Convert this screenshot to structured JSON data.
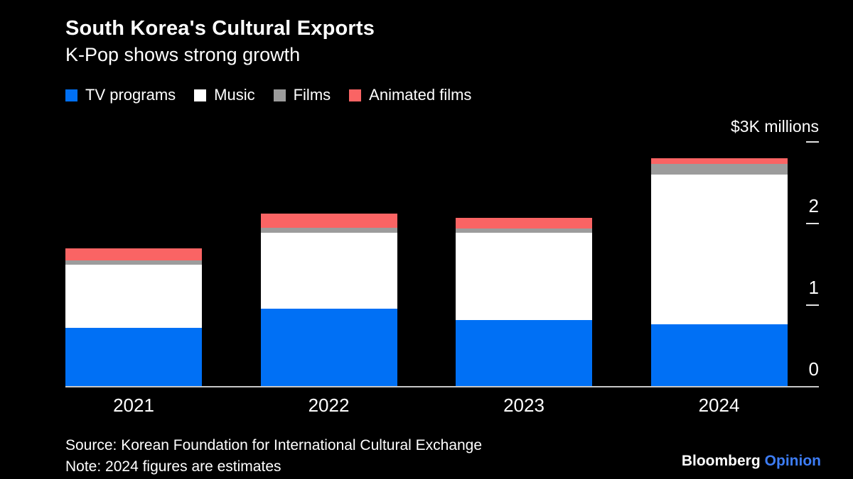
{
  "chart_data": {
    "type": "bar",
    "stacked": true,
    "title": "South Korea's Cultural Exports",
    "subtitle": "K-Pop shows strong growth",
    "categories": [
      "2021",
      "2022",
      "2023",
      "2024"
    ],
    "series": [
      {
        "name": "TV programs",
        "color": "#0070f5",
        "values": [
          0.71,
          0.95,
          0.81,
          0.76
        ]
      },
      {
        "name": "Music",
        "color": "#ffffff",
        "values": [
          0.78,
          0.93,
          1.07,
          1.83
        ]
      },
      {
        "name": "Films",
        "color": "#9c9c9c",
        "values": [
          0.05,
          0.06,
          0.05,
          0.13
        ]
      },
      {
        "name": "Animated films",
        "color": "#fa6464",
        "values": [
          0.15,
          0.17,
          0.13,
          0.07
        ]
      }
    ],
    "value_unit": "$K millions",
    "ylim": [
      0,
      3
    ],
    "grid": false,
    "legend_position": "top-left",
    "y_axis": {
      "unit_label": "$3K millions",
      "ticks": [
        {
          "value": 3,
          "label": "$3K millions",
          "is_unit": true
        },
        {
          "value": 2,
          "label": "2",
          "is_unit": false
        },
        {
          "value": 1,
          "label": "1",
          "is_unit": false
        },
        {
          "value": 0,
          "label": "0",
          "is_unit": false
        }
      ]
    }
  },
  "footer": {
    "source": "Source: Korean Foundation for International Cultural Exchange",
    "note": "Note: 2024 figures are estimates",
    "brand": {
      "bloomberg": "Bloomberg",
      "opinion": "Opinion"
    },
    "brand_opinion_color": "#3d7df6"
  },
  "colors": {
    "background": "#000000",
    "text": "#ffffff",
    "baseline": "#c7c7c7",
    "tick_dash": "#e2e2e2"
  }
}
